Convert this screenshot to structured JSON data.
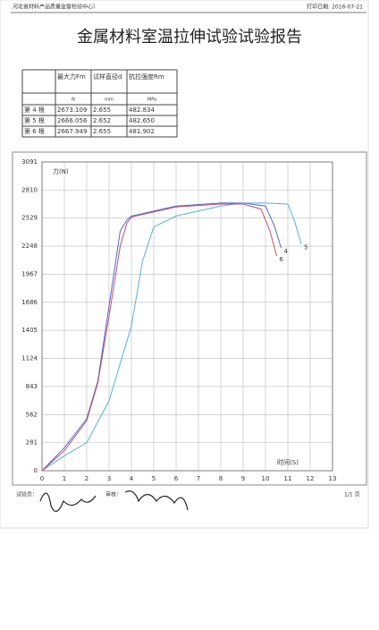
{
  "header": {
    "org": "河北省材料产品质量监督检验中心）",
    "print_date": "打印日期: 2016-07-21"
  },
  "title": "金属材料室温拉伸试验试验报告",
  "table": {
    "head": [
      "最大力Fm",
      "试样直径d",
      "抗拉强度Rm"
    ],
    "units": [
      "N",
      "mm",
      "MPa"
    ],
    "rows": [
      [
        "第 4 根",
        "2673.109",
        "2.655",
        "482.834"
      ],
      [
        "第 5 根",
        "2666.056",
        "2.652",
        "482.650"
      ],
      [
        "第 6 根",
        "2667.949",
        "2.655",
        "481.902"
      ]
    ]
  },
  "chart_data": {
    "type": "line",
    "x_label": "时间(S)",
    "y_label": "力(N)",
    "xlim": [
      0,
      13
    ],
    "xticks": [
      0,
      1,
      2,
      3,
      4,
      5,
      6,
      7,
      8,
      9,
      10,
      11,
      12,
      13
    ],
    "ylim": [
      0,
      3091
    ],
    "yticks": [
      0,
      281,
      562,
      843,
      1124,
      1405,
      1686,
      1967,
      2248,
      2529,
      2810,
      3091
    ],
    "grid": true,
    "series": [
      {
        "name": "4",
        "color": "#5566cc",
        "x": [
          0,
          1,
          2,
          2.5,
          3,
          3.5,
          3.8,
          4,
          6,
          8,
          9,
          10,
          10.4,
          10.7
        ],
        "values": [
          0,
          230,
          520,
          900,
          1650,
          2400,
          2510,
          2550,
          2650,
          2680,
          2680,
          2650,
          2450,
          2230
        ]
      },
      {
        "name": "5",
        "color": "#55b0e0",
        "x": [
          0,
          1,
          2,
          3,
          4,
          4.5,
          5,
          6,
          8,
          9,
          10,
          11,
          11.3,
          11.6
        ],
        "values": [
          0,
          150,
          280,
          700,
          1450,
          2100,
          2440,
          2550,
          2650,
          2680,
          2680,
          2670,
          2500,
          2270
        ]
      },
      {
        "name": "6",
        "color": "#c0506a",
        "x": [
          0,
          1,
          2,
          2.5,
          3,
          3.5,
          3.8,
          4,
          6,
          8,
          9,
          9.8,
          10.2,
          10.5
        ],
        "values": [
          0,
          200,
          500,
          880,
          1550,
          2250,
          2480,
          2540,
          2640,
          2670,
          2670,
          2620,
          2400,
          2150
        ]
      }
    ]
  },
  "footer": {
    "tester": "试验员：",
    "reviewer": "审核：",
    "page": "1/1 页"
  }
}
